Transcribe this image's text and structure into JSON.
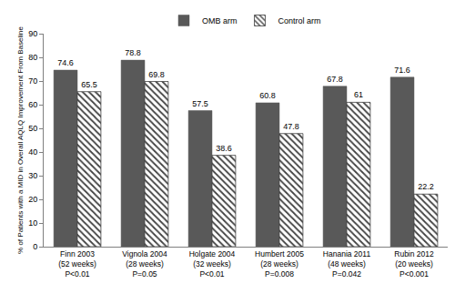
{
  "chart_data": {
    "type": "bar",
    "ylabel": "% of Patients with a MID in Overall AQLQ Improvement From Baseline",
    "categories": [
      "Finn 2003\n(52 weeks)\nP<0.01",
      "Vignola 2004\n(28 weeks)\nP=0.05",
      "Holgate 2004\n(32 weeks)\nP<0.01",
      "Humbert 2005\n(28 weeks)\nP=0.008",
      "Hanania 2011\n(48 weeks)\nP=0.042",
      "Rubin 2012\n(20 weeks)\nP<0.001"
    ],
    "series": [
      {
        "name": "OMB arm",
        "color": "#595959",
        "marker": "solid",
        "values": [
          74.6,
          78.8,
          57.5,
          60.8,
          67.8,
          71.6
        ]
      },
      {
        "name": "Control arm",
        "color": "#404040",
        "marker": "hatch",
        "values": [
          65.5,
          69.8,
          38.6,
          47.8,
          61,
          22.2
        ]
      }
    ],
    "ylim": [
      0,
      90
    ],
    "yticks": [
      0,
      10,
      20,
      30,
      40,
      50,
      60,
      70,
      80,
      90
    ],
    "grid": false,
    "legend": "top",
    "data_labels": true
  }
}
